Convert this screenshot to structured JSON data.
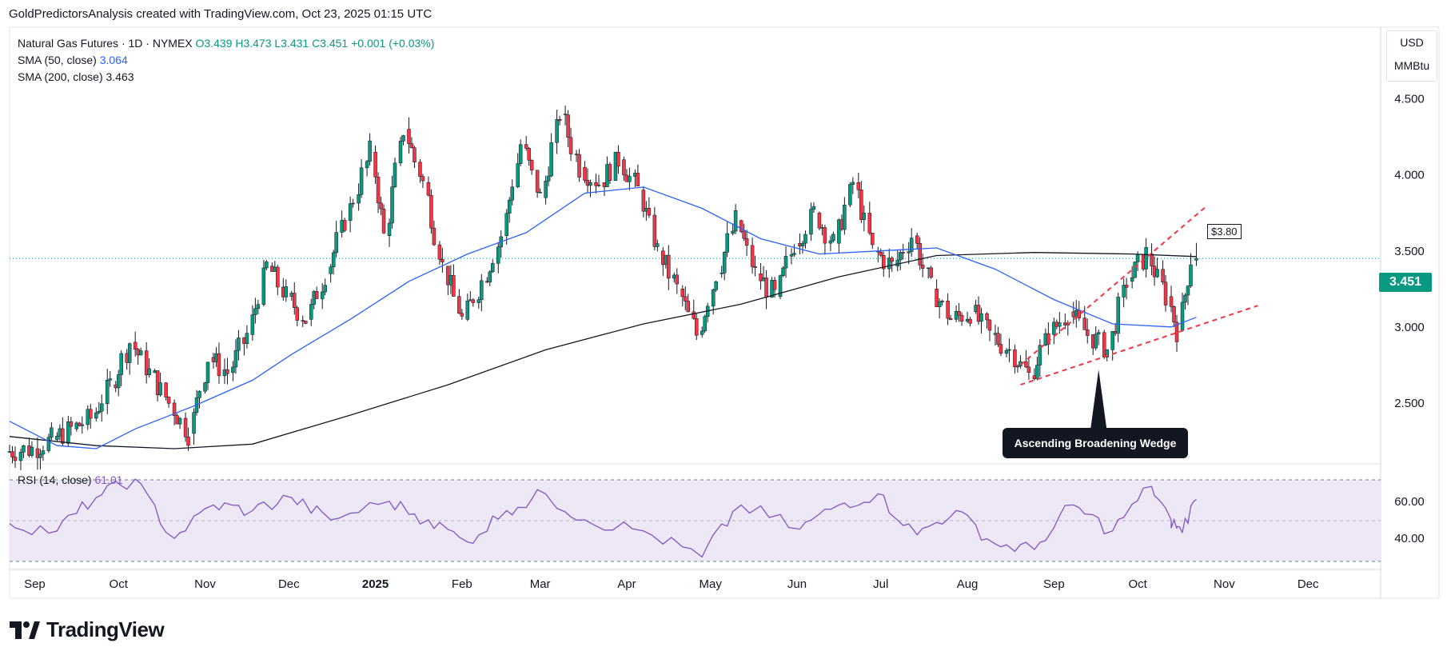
{
  "header": {
    "attribution": "GoldPredictorsAnalysis created with TradingView.com, Oct 23, 2025 01:15 UTC"
  },
  "legend": {
    "symbol": "Natural Gas Futures · 1D · NYMEX",
    "ohlc": "O3.439  H3.473  L3.431  C3.451",
    "change": "+0.001 (+0.03%)",
    "sma50_label": "SMA (50, close)",
    "sma50_value": "3.064",
    "sma200_label": "SMA (200, close)",
    "sma200_value": "3.463"
  },
  "price_axis": {
    "currency": "USD",
    "unit": "MMBtu",
    "ticks": [
      "4.500",
      "4.000",
      "3.500",
      "3.000",
      "2.500"
    ]
  },
  "last_price_tag": "3.451",
  "rsi": {
    "label": "RSI (14, close)",
    "value": "61.01",
    "ticks": [
      "60.00",
      "40.00"
    ],
    "upper": 70,
    "lower": 30,
    "mid": 50
  },
  "time_axis": [
    "Sep",
    "Oct",
    "Nov",
    "Dec",
    "2025",
    "Feb",
    "Mar",
    "Apr",
    "May",
    "Jun",
    "Jul",
    "Aug",
    "Sep",
    "Oct",
    "Nov",
    "Dec"
  ],
  "annotations": {
    "pattern": "Ascending Broadening Wedge",
    "target": "$3.80"
  },
  "footer": {
    "brand": "TradingView"
  },
  "colors": {
    "up": "#089981",
    "down": "#f23645",
    "sma50": "#2962ff",
    "sma200": "#131722",
    "rsi": "#7e57c2",
    "rsi_band": "#ede7f6",
    "wedge": "#f23645"
  },
  "chart_data": {
    "type": "candlestick",
    "interval": "1D",
    "instrument": "Natural Gas Futures",
    "exchange": "NYMEX",
    "ylim": [
      2.1,
      4.95
    ],
    "x_range": [
      "2024-08-23",
      "2025-12-27"
    ],
    "last": {
      "open": 3.439,
      "high": 3.473,
      "low": 3.431,
      "close": 3.451
    },
    "series": [
      {
        "name": "Natural Gas Futures",
        "type": "candlestick",
        "points": [
          [
            "2024-08-23",
            2.18,
            2.2
          ],
          [
            "2024-09-02",
            2.2,
            2.26
          ],
          [
            "2024-09-09",
            2.26,
            2.33
          ],
          [
            "2024-09-16",
            2.33,
            2.4
          ],
          [
            "2024-09-23",
            2.4,
            2.62
          ],
          [
            "2024-09-30",
            2.62,
            2.9
          ],
          [
            "2024-10-07",
            2.9,
            2.7
          ],
          [
            "2024-10-14",
            2.7,
            2.5
          ],
          [
            "2024-10-21",
            2.5,
            2.3
          ],
          [
            "2024-10-28",
            2.3,
            2.8
          ],
          [
            "2024-11-04",
            2.8,
            2.7
          ],
          [
            "2024-11-11",
            2.7,
            2.95
          ],
          [
            "2024-11-18",
            2.95,
            3.4
          ],
          [
            "2024-11-25",
            3.4,
            3.2
          ],
          [
            "2024-12-02",
            3.2,
            3.05
          ],
          [
            "2024-12-09",
            3.05,
            3.35
          ],
          [
            "2024-12-16",
            3.35,
            3.7
          ],
          [
            "2024-12-23",
            3.7,
            4.15
          ],
          [
            "2025-01-01",
            4.15,
            3.6
          ],
          [
            "2025-01-06",
            3.6,
            4.3
          ],
          [
            "2025-01-13",
            4.3,
            3.95
          ],
          [
            "2025-01-20",
            3.95,
            3.4
          ],
          [
            "2025-01-27",
            3.4,
            3.05
          ],
          [
            "2025-02-03",
            3.05,
            3.3
          ],
          [
            "2025-02-10",
            3.3,
            3.6
          ],
          [
            "2025-02-17",
            3.6,
            4.2
          ],
          [
            "2025-02-24",
            4.2,
            3.85
          ],
          [
            "2025-03-03",
            3.85,
            4.4
          ],
          [
            "2025-03-10",
            4.4,
            4.05
          ],
          [
            "2025-03-17",
            4.05,
            3.95
          ],
          [
            "2025-03-24",
            3.95,
            4.1
          ],
          [
            "2025-03-31",
            4.1,
            3.9
          ],
          [
            "2025-04-07",
            3.9,
            3.5
          ],
          [
            "2025-04-14",
            3.5,
            3.25
          ],
          [
            "2025-04-21",
            3.25,
            2.95
          ],
          [
            "2025-04-28",
            2.95,
            3.35
          ],
          [
            "2025-05-05",
            3.35,
            3.7
          ],
          [
            "2025-05-12",
            3.7,
            3.35
          ],
          [
            "2025-05-19",
            3.35,
            3.2
          ],
          [
            "2025-05-26",
            3.2,
            3.55
          ],
          [
            "2025-06-02",
            3.55,
            3.75
          ],
          [
            "2025-06-09",
            3.75,
            3.55
          ],
          [
            "2025-06-16",
            3.55,
            3.95
          ],
          [
            "2025-06-23",
            3.95,
            3.5
          ],
          [
            "2025-06-30",
            3.5,
            3.4
          ],
          [
            "2025-07-07",
            3.4,
            3.6
          ],
          [
            "2025-07-14",
            3.6,
            3.25
          ],
          [
            "2025-07-21",
            3.25,
            3.05
          ],
          [
            "2025-07-28",
            3.05,
            3.1
          ],
          [
            "2025-08-04",
            3.1,
            2.95
          ],
          [
            "2025-08-11",
            2.95,
            2.85
          ],
          [
            "2025-08-18",
            2.85,
            2.68
          ],
          [
            "2025-08-25",
            2.68,
            2.95
          ],
          [
            "2025-09-01",
            2.95,
            3.1
          ],
          [
            "2025-09-08",
            3.1,
            2.95
          ],
          [
            "2025-09-15",
            2.95,
            2.85
          ],
          [
            "2025-09-22",
            2.85,
            3.3
          ],
          [
            "2025-09-29",
            3.3,
            3.48
          ],
          [
            "2025-10-06",
            3.48,
            3.2
          ],
          [
            "2025-10-13",
            3.2,
            2.98
          ],
          [
            "2025-10-17",
            2.98,
            3.45
          ],
          [
            "2025-10-22",
            3.44,
            3.45
          ]
        ]
      },
      {
        "name": "SMA (50, close)",
        "points": [
          [
            "2024-08-23",
            2.38
          ],
          [
            "2024-09-09",
            2.22
          ],
          [
            "2024-09-23",
            2.2
          ],
          [
            "2024-10-07",
            2.33
          ],
          [
            "2024-10-28",
            2.48
          ],
          [
            "2024-11-18",
            2.65
          ],
          [
            "2024-12-02",
            2.82
          ],
          [
            "2024-12-23",
            3.05
          ],
          [
            "2025-01-13",
            3.3
          ],
          [
            "2025-02-03",
            3.48
          ],
          [
            "2025-02-24",
            3.62
          ],
          [
            "2025-03-17",
            3.88
          ],
          [
            "2025-04-07",
            3.92
          ],
          [
            "2025-04-28",
            3.78
          ],
          [
            "2025-05-19",
            3.58
          ],
          [
            "2025-06-09",
            3.48
          ],
          [
            "2025-06-30",
            3.5
          ],
          [
            "2025-07-21",
            3.52
          ],
          [
            "2025-08-11",
            3.38
          ],
          [
            "2025-09-01",
            3.18
          ],
          [
            "2025-09-22",
            3.02
          ],
          [
            "2025-10-13",
            3.0
          ],
          [
            "2025-10-22",
            3.064
          ]
        ]
      },
      {
        "name": "SMA (200, close)",
        "points": [
          [
            "2024-08-23",
            2.28
          ],
          [
            "2024-09-23",
            2.22
          ],
          [
            "2024-10-21",
            2.2
          ],
          [
            "2024-11-18",
            2.23
          ],
          [
            "2024-12-23",
            2.42
          ],
          [
            "2025-01-27",
            2.62
          ],
          [
            "2025-03-03",
            2.85
          ],
          [
            "2025-04-07",
            3.02
          ],
          [
            "2025-05-12",
            3.15
          ],
          [
            "2025-06-16",
            3.33
          ],
          [
            "2025-07-21",
            3.47
          ],
          [
            "2025-08-25",
            3.49
          ],
          [
            "2025-09-29",
            3.48
          ],
          [
            "2025-10-22",
            3.463
          ]
        ]
      },
      {
        "name": "RSI (14, close)",
        "ylim": [
          25,
          75
        ],
        "points": [
          [
            "2024-08-23",
            48
          ],
          [
            "2024-09-09",
            44
          ],
          [
            "2024-09-23",
            62
          ],
          [
            "2024-10-07",
            72
          ],
          [
            "2024-10-21",
            40
          ],
          [
            "2024-11-04",
            58
          ],
          [
            "2024-11-18",
            55
          ],
          [
            "2024-12-02",
            62
          ],
          [
            "2024-12-16",
            50
          ],
          [
            "2025-01-06",
            60
          ],
          [
            "2025-01-20",
            50
          ],
          [
            "2025-02-03",
            38
          ],
          [
            "2025-02-17",
            55
          ],
          [
            "2025-03-03",
            64
          ],
          [
            "2025-03-17",
            50
          ],
          [
            "2025-04-07",
            44
          ],
          [
            "2025-04-28",
            30
          ],
          [
            "2025-05-12",
            58
          ],
          [
            "2025-06-02",
            45
          ],
          [
            "2025-06-16",
            58
          ],
          [
            "2025-06-30",
            64
          ],
          [
            "2025-07-14",
            42
          ],
          [
            "2025-07-28",
            55
          ],
          [
            "2025-08-11",
            37
          ],
          [
            "2025-08-25",
            34
          ],
          [
            "2025-09-08",
            58
          ],
          [
            "2025-09-22",
            44
          ],
          [
            "2025-10-06",
            68
          ],
          [
            "2025-10-13",
            50
          ],
          [
            "2025-10-17",
            43
          ],
          [
            "2025-10-22",
            61.01
          ]
        ]
      }
    ],
    "wedge_lines": [
      {
        "start": [
          "2025-08-20",
          2.62
        ],
        "end": [
          "2025-11-13",
          3.14
        ]
      },
      {
        "start": [
          "2025-08-20",
          2.75
        ],
        "end": [
          "2025-10-26",
          3.8
        ]
      }
    ]
  }
}
